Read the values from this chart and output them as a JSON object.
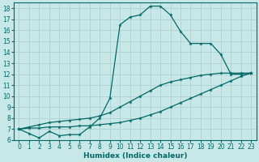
{
  "title": "",
  "xlabel": "Humidex (Indice chaleur)",
  "background_color": "#c8e8e8",
  "grid_color": "#b0d4d4",
  "line_color": "#006868",
  "xlim": [
    -0.5,
    23.5
  ],
  "ylim": [
    6,
    18.5
  ],
  "x_ticks": [
    0,
    1,
    2,
    3,
    4,
    5,
    6,
    7,
    8,
    9,
    10,
    11,
    12,
    13,
    14,
    15,
    16,
    17,
    18,
    19,
    20,
    21,
    22,
    23
  ],
  "y_ticks": [
    6,
    7,
    8,
    9,
    10,
    11,
    12,
    13,
    14,
    15,
    16,
    17,
    18
  ],
  "line1_x": [
    0,
    1,
    2,
    3,
    4,
    5,
    6,
    7,
    8,
    9,
    10,
    11,
    12,
    13,
    14,
    15,
    16,
    17,
    18,
    19,
    20,
    21,
    22,
    23
  ],
  "line1_y": [
    7.0,
    6.6,
    6.2,
    6.8,
    6.4,
    6.5,
    6.5,
    7.2,
    8.0,
    9.8,
    16.5,
    17.2,
    17.4,
    18.2,
    18.2,
    17.4,
    15.9,
    14.8,
    14.8,
    14.8,
    13.8,
    12.0,
    12.0,
    12.1
  ],
  "line2_x": [
    0,
    1,
    2,
    3,
    4,
    5,
    6,
    7,
    8,
    9,
    10,
    11,
    12,
    13,
    14,
    15,
    16,
    17,
    18,
    19,
    20,
    21,
    22,
    23
  ],
  "line2_y": [
    7.0,
    7.2,
    7.4,
    7.6,
    7.7,
    7.8,
    7.9,
    8.0,
    8.2,
    8.5,
    9.0,
    9.5,
    10.0,
    10.5,
    11.0,
    11.3,
    11.5,
    11.7,
    11.9,
    12.0,
    12.1,
    12.1,
    12.1,
    12.1
  ],
  "line3_x": [
    0,
    1,
    2,
    3,
    4,
    5,
    6,
    7,
    8,
    9,
    10,
    11,
    12,
    13,
    14,
    15,
    16,
    17,
    18,
    19,
    20,
    21,
    22,
    23
  ],
  "line3_y": [
    7.0,
    7.1,
    7.1,
    7.2,
    7.2,
    7.2,
    7.3,
    7.3,
    7.4,
    7.5,
    7.6,
    7.8,
    8.0,
    8.3,
    8.6,
    9.0,
    9.4,
    9.8,
    10.2,
    10.6,
    11.0,
    11.4,
    11.8,
    12.1
  ]
}
